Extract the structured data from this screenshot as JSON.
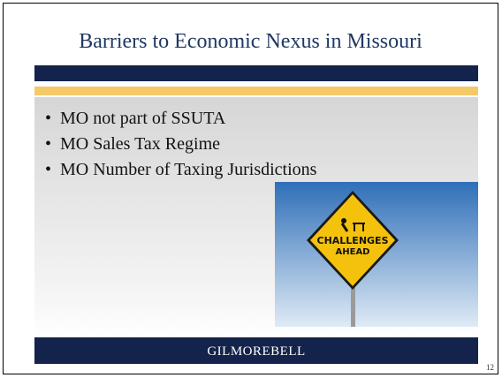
{
  "slide": {
    "title": "Barriers to Economic Nexus in Missouri",
    "bullets": [
      "MO not part of SSUTA",
      "MO Sales Tax Regime",
      "MO Number of Taxing Jurisdictions"
    ],
    "image": {
      "sign_line1": "CHALLENGES",
      "sign_line2": "AHEAD"
    },
    "footer": {
      "logo": "GILMOREBELL"
    },
    "page_number": "12"
  }
}
